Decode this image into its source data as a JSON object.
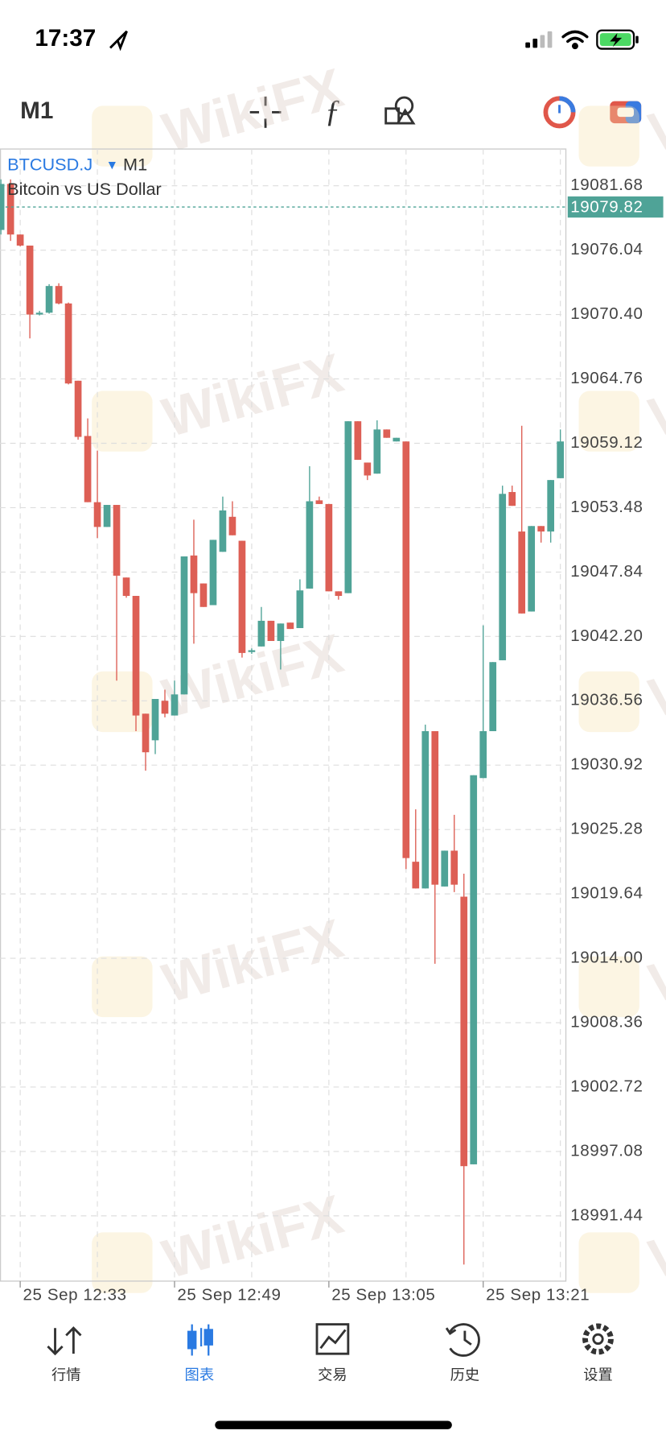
{
  "status_bar": {
    "time": "17:37"
  },
  "toolbar": {
    "timeframe": "M1"
  },
  "watermark": "WikiFX",
  "chart_data": {
    "type": "candlestick",
    "symbol": "BTCUSD.J",
    "timeframe": "M1",
    "description": "Bitcoin vs US Dollar",
    "categories": [
      null,
      null,
      "25 Sep 12:33",
      null,
      null,
      null,
      null,
      null,
      null,
      null,
      null,
      null,
      null,
      null,
      null,
      null,
      null,
      null,
      "25 Sep 12:49",
      null,
      null,
      null,
      null,
      null,
      null,
      null,
      null,
      null,
      null,
      null,
      null,
      null,
      null,
      null,
      "25 Sep 13:05",
      null,
      null,
      null,
      null,
      null,
      null,
      null,
      null,
      null,
      null,
      null,
      null,
      null,
      null,
      null,
      "25 Sep 13:21",
      null,
      null,
      null,
      null,
      null,
      null,
      null,
      null
    ],
    "open": [
      19077.81,
      19081.84,
      19077.41,
      19076.44,
      19070.4,
      19070.56,
      19072.9,
      19071.37,
      19064.6,
      19059.76,
      19053.96,
      19051.79,
      19053.72,
      19047.36,
      19045.75,
      19035.43,
      19033.1,
      19036.56,
      19035.27,
      19037.12,
      19049.29,
      19046.84,
      19044.94,
      19049.61,
      19052.68,
      19050.58,
      19040.83,
      19041.32,
      19043.57,
      19041.8,
      19043.41,
      19042.93,
      19046.39,
      19054.12,
      19053.8,
      19046.15,
      19045.99,
      19061.05,
      19057.43,
      19056.46,
      19060.33,
      19059.28,
      19059.28,
      19022.46,
      19020.12,
      19033.9,
      19020.29,
      19023.43,
      19019.4,
      18995.95,
      19029.79,
      19033.9,
      19040.11,
      19054.85,
      19051.39,
      19044.38,
      19051.87,
      19051.39,
      19056.06
    ],
    "high": [
      19082.24,
      19082.24,
      19077.41,
      19076.44,
      19070.72,
      19073.06,
      19073.14,
      19071.45,
      19064.6,
      19061.3,
      19058.48,
      19053.72,
      19053.72,
      19047.36,
      19045.75,
      19035.43,
      19036.72,
      19037.53,
      19038.33,
      19049.21,
      19052.43,
      19046.84,
      19050.66,
      19054.45,
      19054.04,
      19050.58,
      19041.15,
      19044.78,
      19043.57,
      19043.33,
      19043.41,
      19047.2,
      19057.11,
      19054.45,
      19053.8,
      19046.15,
      19061.05,
      19061.05,
      19057.43,
      19061.13,
      19060.33,
      19059.6,
      19059.28,
      19027.05,
      19034.47,
      19033.9,
      19023.43,
      19026.57,
      19021.41,
      19030.04,
      19043.17,
      19039.95,
      19055.41,
      19055.41,
      19060.65,
      19051.87,
      19051.87,
      19055.9,
      19060.33
    ],
    "low": [
      19077.41,
      19076.85,
      19076.36,
      19068.31,
      19070.32,
      19070.48,
      19071.29,
      19064.28,
      19059.44,
      19053.96,
      19050.82,
      19051.79,
      19038.33,
      19045.59,
      19033.9,
      19030.44,
      19031.89,
      19035.11,
      19035.27,
      19037.12,
      19041.56,
      19044.78,
      19044.94,
      19049.61,
      19051.06,
      19040.35,
      19040.67,
      19041.32,
      19041.8,
      19039.3,
      19042.85,
      19042.93,
      19046.39,
      19053.8,
      19046.15,
      19045.42,
      19045.99,
      19057.67,
      19055.9,
      19056.46,
      19059.6,
      19059.28,
      19021.82,
      19020.12,
      19020.12,
      19013.52,
      19020.29,
      19019.8,
      18987.17,
      18995.95,
      19029.79,
      19033.9,
      19040.11,
      19053.64,
      19044.21,
      19044.38,
      19050.42,
      19050.42,
      19056.06
    ],
    "close": [
      19081.84,
      19077.41,
      19076.44,
      19070.4,
      19070.56,
      19072.9,
      19071.37,
      19064.36,
      19059.68,
      19053.96,
      19051.79,
      19053.72,
      19047.52,
      19045.75,
      19035.27,
      19032.05,
      19036.72,
      19035.43,
      19037.12,
      19049.21,
      19045.99,
      19044.78,
      19050.66,
      19053.24,
      19051.06,
      19040.75,
      19040.99,
      19043.57,
      19041.8,
      19043.33,
      19042.85,
      19046.23,
      19054.04,
      19053.8,
      19046.15,
      19045.75,
      19061.05,
      19057.67,
      19056.3,
      19060.33,
      19059.6,
      19059.6,
      19022.78,
      19020.12,
      19033.9,
      19020.45,
      19023.43,
      19020.45,
      18995.79,
      19030.04,
      19033.9,
      19039.95,
      19054.69,
      19053.64,
      19044.21,
      19051.87,
      19051.39,
      19055.9,
      19059.28
    ],
    "up_color": "#4fa397",
    "down_color": "#dd5f55",
    "ylim": [
      18985.72,
      19084.9
    ],
    "yticks": [
      {
        "value": 19081.68,
        "label": "19081.68"
      },
      {
        "value": 19076.04,
        "label": "19076.04"
      },
      {
        "value": 19070.4,
        "label": "19070.40"
      },
      {
        "value": 19064.76,
        "label": "19064.76"
      },
      {
        "value": 19059.12,
        "label": "19059.12"
      },
      {
        "value": 19053.48,
        "label": "19053.48"
      },
      {
        "value": 19047.84,
        "label": "19047.84"
      },
      {
        "value": 19042.2,
        "label": "19042.20"
      },
      {
        "value": 19036.56,
        "label": "19036.56"
      },
      {
        "value": 19030.92,
        "label": "19030.92"
      },
      {
        "value": 19025.28,
        "label": "19025.28"
      },
      {
        "value": 19019.64,
        "label": "19019.64"
      },
      {
        "value": 19014,
        "label": "19014.00"
      },
      {
        "value": 19008.36,
        "label": "19008.36"
      },
      {
        "value": 19002.72,
        "label": "19002.72"
      },
      {
        "value": 18997.08,
        "label": "18997.08"
      },
      {
        "value": 18991.44,
        "label": "18991.44"
      }
    ],
    "grid": true,
    "price_line": 19079.82,
    "price_line_color": "#4fa397"
  },
  "tab_bar": {
    "tabs": [
      "行情",
      "图表",
      "交易",
      "历史",
      "设置"
    ]
  }
}
